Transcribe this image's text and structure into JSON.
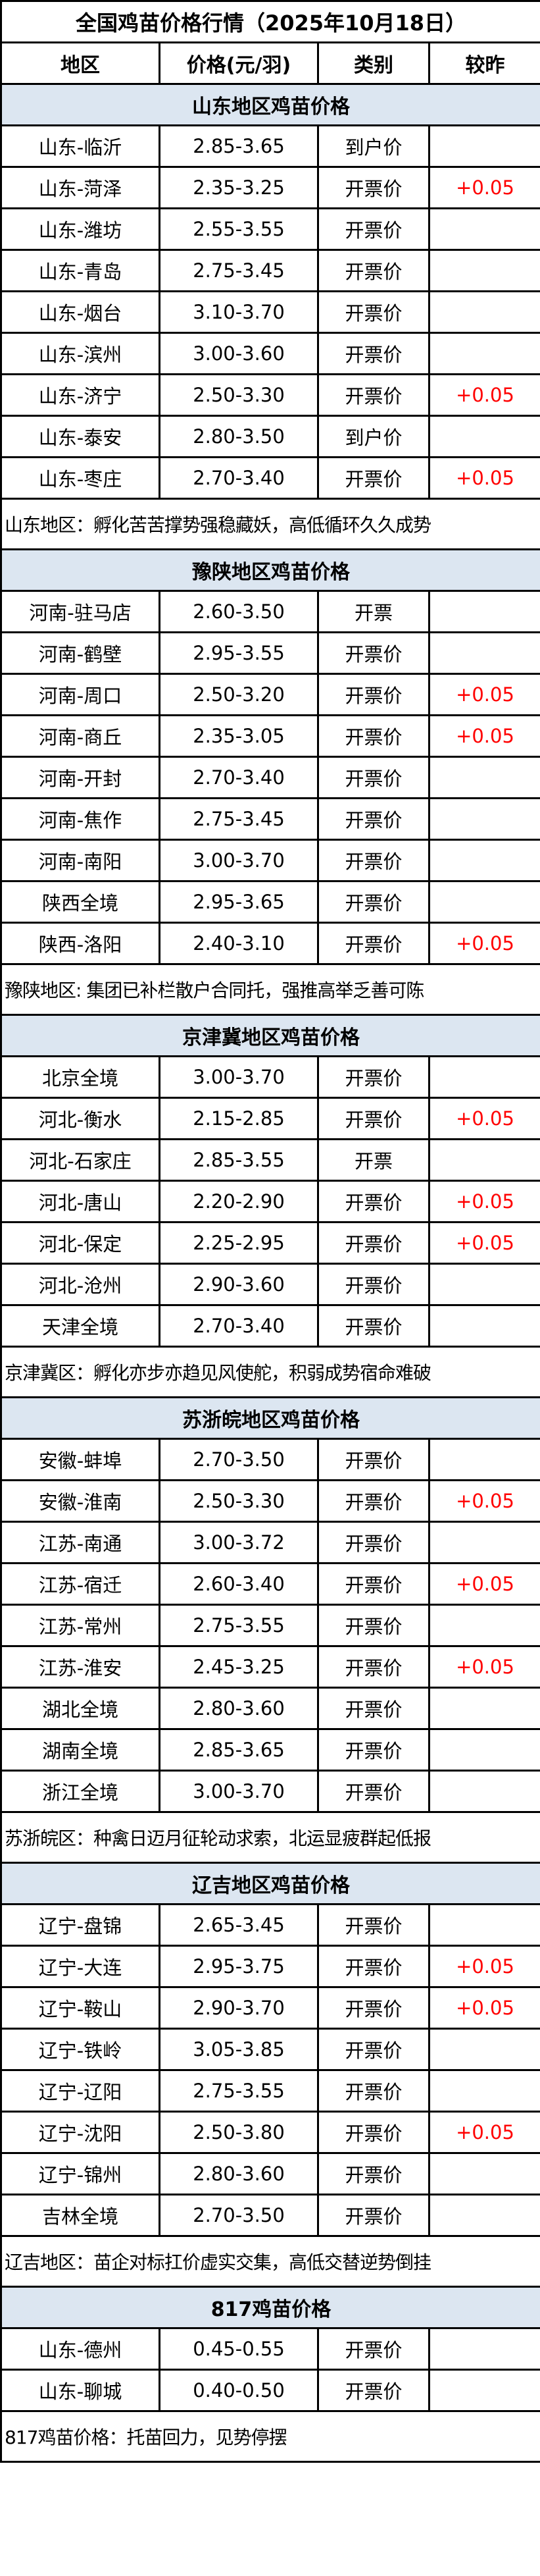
{
  "title": "全国鸡苗价格行情（2025年10月18日）",
  "headers": [
    "地区",
    "价格(元/羽)",
    "类别",
    "较昨"
  ],
  "colors": {
    "section_bg": "#dce6f1",
    "change_up": "#ff0000",
    "border": "#000000"
  },
  "sections": [
    {
      "title": "山东地区鸡苗价格",
      "rows": [
        {
          "region": "山东-临沂",
          "price": "2.85-3.65",
          "type": "到户价",
          "change": ""
        },
        {
          "region": "山东-菏泽",
          "price": "2.35-3.25",
          "type": "开票价",
          "change": "+0.05"
        },
        {
          "region": "山东-潍坊",
          "price": "2.55-3.55",
          "type": "开票价",
          "change": ""
        },
        {
          "region": "山东-青岛",
          "price": "2.75-3.45",
          "type": "开票价",
          "change": ""
        },
        {
          "region": "山东-烟台",
          "price": "3.10-3.70",
          "type": "开票价",
          "change": ""
        },
        {
          "region": "山东-滨州",
          "price": "3.00-3.60",
          "type": "开票价",
          "change": ""
        },
        {
          "region": "山东-济宁",
          "price": "2.50-3.30",
          "type": "开票价",
          "change": "+0.05"
        },
        {
          "region": "山东-泰安",
          "price": "2.80-3.50",
          "type": "到户价",
          "change": ""
        },
        {
          "region": "山东-枣庄",
          "price": "2.70-3.40",
          "type": "开票价",
          "change": "+0.05"
        }
      ],
      "note": "山东地区：孵化苦苦撑势强稳藏妖，高低循环久久成势"
    },
    {
      "title": "豫陕地区鸡苗价格",
      "rows": [
        {
          "region": "河南-驻马店",
          "price": "2.60-3.50",
          "type": "开票",
          "change": ""
        },
        {
          "region": "河南-鹤壁",
          "price": "2.95-3.55",
          "type": "开票价",
          "change": ""
        },
        {
          "region": "河南-周口",
          "price": "2.50-3.20",
          "type": "开票价",
          "change": "+0.05"
        },
        {
          "region": "河南-商丘",
          "price": "2.35-3.05",
          "type": "开票价",
          "change": "+0.05"
        },
        {
          "region": "河南-开封",
          "price": "2.70-3.40",
          "type": "开票价",
          "change": ""
        },
        {
          "region": "河南-焦作",
          "price": "2.75-3.45",
          "type": "开票价",
          "change": ""
        },
        {
          "region": "河南-南阳",
          "price": "3.00-3.70",
          "type": "开票价",
          "change": ""
        },
        {
          "region": "陕西全境",
          "price": "2.95-3.65",
          "type": "开票价",
          "change": ""
        },
        {
          "region": "陕西-洛阳",
          "price": "2.40-3.10",
          "type": "开票价",
          "change": "+0.05"
        }
      ],
      "note": "豫陕地区: 集团已补栏散户合同托，强推高举乏善可陈"
    },
    {
      "title": "京津冀地区鸡苗价格",
      "rows": [
        {
          "region": "北京全境",
          "price": "3.00-3.70",
          "type": "开票价",
          "change": ""
        },
        {
          "region": "河北-衡水",
          "price": "2.15-2.85",
          "type": "开票价",
          "change": "+0.05"
        },
        {
          "region": "河北-石家庄",
          "price": "2.85-3.55",
          "type": "开票",
          "change": ""
        },
        {
          "region": "河北-唐山",
          "price": "2.20-2.90",
          "type": "开票价",
          "change": "+0.05"
        },
        {
          "region": "河北-保定",
          "price": "2.25-2.95",
          "type": "开票价",
          "change": "+0.05"
        },
        {
          "region": "河北-沧州",
          "price": "2.90-3.60",
          "type": "开票价",
          "change": ""
        },
        {
          "region": "天津全境",
          "price": "2.70-3.40",
          "type": "开票价",
          "change": ""
        }
      ],
      "note": "京津冀区：孵化亦步亦趋见风使舵，积弱成势宿命难破"
    },
    {
      "title": "苏浙皖地区鸡苗价格",
      "rows": [
        {
          "region": "安徽-蚌埠",
          "price": "2.70-3.50",
          "type": "开票价",
          "change": ""
        },
        {
          "region": "安徽-淮南",
          "price": "2.50-3.30",
          "type": "开票价",
          "change": "+0.05"
        },
        {
          "region": "江苏-南通",
          "price": "3.00-3.72",
          "type": "开票价",
          "change": ""
        },
        {
          "region": "江苏-宿迁",
          "price": "2.60-3.40",
          "type": "开票价",
          "change": "+0.05"
        },
        {
          "region": "江苏-常州",
          "price": "2.75-3.55",
          "type": "开票价",
          "change": ""
        },
        {
          "region": "江苏-淮安",
          "price": "2.45-3.25",
          "type": "开票价",
          "change": "+0.05"
        },
        {
          "region": "湖北全境",
          "price": "2.80-3.60",
          "type": "开票价",
          "change": ""
        },
        {
          "region": "湖南全境",
          "price": "2.85-3.65",
          "type": "开票价",
          "change": ""
        },
        {
          "region": "浙江全境",
          "price": "3.00-3.70",
          "type": "开票价",
          "change": ""
        }
      ],
      "note": "苏浙皖区：种禽日迈月征轮动求索，北运显疲群起低报"
    },
    {
      "title": "辽吉地区鸡苗价格",
      "rows": [
        {
          "region": "辽宁-盘锦",
          "price": "2.65-3.45",
          "type": "开票价",
          "change": ""
        },
        {
          "region": "辽宁-大连",
          "price": "2.95-3.75",
          "type": "开票价",
          "change": "+0.05"
        },
        {
          "region": "辽宁-鞍山",
          "price": "2.90-3.70",
          "type": "开票价",
          "change": "+0.05"
        },
        {
          "region": "辽宁-铁岭",
          "price": "3.05-3.85",
          "type": "开票价",
          "change": ""
        },
        {
          "region": "辽宁-辽阳",
          "price": "2.75-3.55",
          "type": "开票价",
          "change": ""
        },
        {
          "region": "辽宁-沈阳",
          "price": "2.50-3.80",
          "type": "开票价",
          "change": "+0.05"
        },
        {
          "region": "辽宁-锦州",
          "price": "2.80-3.60",
          "type": "开票价",
          "change": ""
        },
        {
          "region": "吉林全境",
          "price": "2.70-3.50",
          "type": "开票价",
          "change": ""
        }
      ],
      "note": "辽吉地区：苗企对标扛价虚实交集，高低交替逆势倒挂"
    },
    {
      "title": "817鸡苗价格",
      "rows": [
        {
          "region": "山东-德州",
          "price": "0.45-0.55",
          "type": "开票价",
          "change": ""
        },
        {
          "region": "山东-聊城",
          "price": "0.40-0.50",
          "type": "开票价",
          "change": ""
        }
      ],
      "note": "817鸡苗价格：托苗回力，见势停摆"
    }
  ]
}
